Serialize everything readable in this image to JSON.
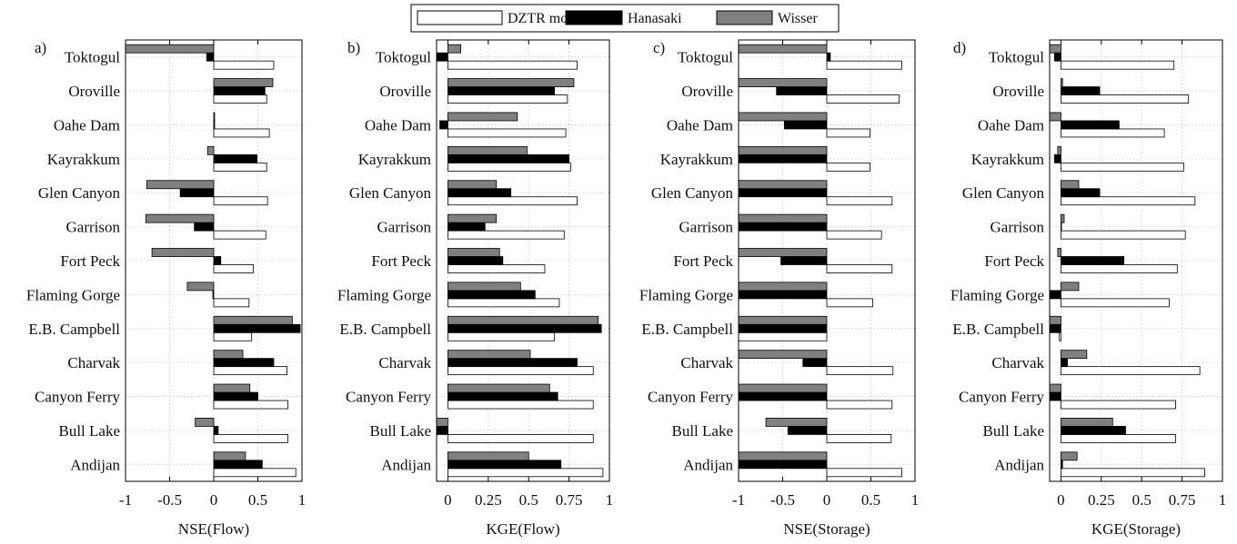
{
  "legend": [
    "DZTR model",
    "Hanasaki",
    "Wisser"
  ],
  "colors": {
    "DZTR model": "#ffffff",
    "Hanasaki": "#000000",
    "Wisser": "#808080"
  },
  "chart_data": [
    {
      "type": "bar",
      "orientation": "horizontal",
      "panel_label": "a)",
      "xlabel": "NSE(Flow)",
      "xlim": [
        -1,
        1
      ],
      "xticks": [
        -1,
        -0.5,
        0,
        0.5,
        1
      ],
      "xtick_labels": [
        "-1",
        "-0.5",
        "0",
        "0.5",
        "1"
      ],
      "grid": true,
      "categories": [
        "Toktogul",
        "Oroville",
        "Oahe Dam",
        "Kayrakkum",
        "Glen Canyon",
        "Garrison",
        "Fort Peck",
        "Flaming Gorge",
        "E.B. Campbell",
        "Charvak",
        "Canyon Ferry",
        "Bull Lake",
        "Andijan"
      ],
      "series": [
        {
          "name": "DZTR model",
          "values": [
            0.68,
            0.6,
            0.63,
            0.6,
            0.61,
            0.59,
            0.45,
            0.4,
            0.43,
            0.83,
            0.84,
            0.84,
            0.93
          ]
        },
        {
          "name": "Hanasaki",
          "values": [
            -0.08,
            0.58,
            0.01,
            0.49,
            -0.38,
            -0.22,
            0.08,
            -0.01,
            0.98,
            0.68,
            0.5,
            0.05,
            0.55
          ]
        },
        {
          "name": "Wisser",
          "values": [
            -1.0,
            0.67,
            0.01,
            -0.07,
            -0.76,
            -0.77,
            -0.7,
            -0.3,
            0.89,
            0.33,
            0.41,
            -0.21,
            0.36
          ]
        }
      ]
    },
    {
      "type": "bar",
      "orientation": "horizontal",
      "panel_label": "b)",
      "xlabel": "KGE(Flow)",
      "xlim": [
        -0.07,
        1
      ],
      "xticks": [
        0,
        0.25,
        0.5,
        0.75,
        1
      ],
      "xtick_labels": [
        "0",
        "0.25",
        "0.5",
        "0.75",
        "1"
      ],
      "grid": true,
      "categories": [
        "Toktogul",
        "Oroville",
        "Oahe Dam",
        "Kayrakkum",
        "Glen Canyon",
        "Garrison",
        "Fort Peck",
        "Flaming Gorge",
        "E.B. Campbell",
        "Charvak",
        "Canyon Ferry",
        "Bull Lake",
        "Andijan"
      ],
      "series": [
        {
          "name": "DZTR model",
          "values": [
            0.8,
            0.74,
            0.73,
            0.76,
            0.8,
            0.72,
            0.6,
            0.69,
            0.66,
            0.9,
            0.9,
            0.9,
            0.96
          ]
        },
        {
          "name": "Hanasaki",
          "values": [
            -0.07,
            0.66,
            -0.05,
            0.75,
            0.39,
            0.23,
            0.34,
            0.54,
            0.95,
            0.8,
            0.68,
            -0.07,
            0.7
          ]
        },
        {
          "name": "Wisser",
          "values": [
            0.08,
            0.78,
            0.43,
            0.49,
            0.3,
            0.3,
            0.32,
            0.45,
            0.93,
            0.51,
            0.63,
            -0.07,
            0.5
          ]
        }
      ]
    },
    {
      "type": "bar",
      "orientation": "horizontal",
      "panel_label": "c)",
      "xlabel": "NSE(Storage)",
      "xlim": [
        -1,
        1
      ],
      "xticks": [
        -1,
        -0.5,
        0,
        0.5,
        1
      ],
      "xtick_labels": [
        "-1",
        "-0.5",
        "0",
        "0.5",
        "1"
      ],
      "grid": true,
      "categories": [
        "Toktogul",
        "Oroville",
        "Oahe Dam",
        "Kayrakkum",
        "Glen Canyon",
        "Garrison",
        "Fort Peck",
        "Flaming Gorge",
        "E.B. Campbell",
        "Charvak",
        "Canyon Ferry",
        "Bull Lake",
        "Andijan"
      ],
      "series": [
        {
          "name": "DZTR model",
          "values": [
            0.85,
            0.82,
            0.49,
            0.49,
            0.74,
            0.62,
            0.74,
            0.52,
            -1.0,
            0.75,
            0.74,
            0.73,
            0.85
          ]
        },
        {
          "name": "Hanasaki",
          "values": [
            0.04,
            -0.57,
            -0.48,
            -1.0,
            -1.0,
            -1.0,
            -0.52,
            -1.0,
            -1.0,
            -0.27,
            -1.0,
            -0.44,
            -1.0
          ]
        },
        {
          "name": "Wisser",
          "values": [
            -1.0,
            -1.0,
            -1.0,
            -1.0,
            -1.0,
            -1.0,
            -1.0,
            -1.0,
            -1.0,
            -1.0,
            -1.0,
            -0.69,
            -1.0
          ]
        }
      ]
    },
    {
      "type": "bar",
      "orientation": "horizontal",
      "panel_label": "d)",
      "xlabel": "KGE(Storage)",
      "xlim": [
        -0.07,
        1
      ],
      "xticks": [
        0,
        0.25,
        0.5,
        0.75,
        1
      ],
      "xtick_labels": [
        "0",
        "0.25",
        "0.5",
        "0.75",
        "1"
      ],
      "grid": true,
      "categories": [
        "Toktogul",
        "Oroville",
        "Oahe Dam",
        "Kayrakkum",
        "Glen Canyon",
        "Garrison",
        "Fort Peck",
        "Flaming Gorge",
        "E.B. Campbell",
        "Charvak",
        "Canyon Ferry",
        "Bull Lake",
        "Andijan"
      ],
      "series": [
        {
          "name": "DZTR model",
          "values": [
            0.7,
            0.79,
            0.64,
            0.76,
            0.83,
            0.77,
            0.72,
            0.67,
            -0.01,
            0.86,
            0.71,
            0.71,
            0.89
          ]
        },
        {
          "name": "Hanasaki",
          "values": [
            -0.04,
            0.24,
            0.36,
            -0.04,
            0.24,
            0.0,
            0.39,
            -0.07,
            -0.07,
            0.04,
            -0.07,
            0.4,
            0.01
          ]
        },
        {
          "name": "Wisser",
          "values": [
            -0.07,
            0.01,
            -0.07,
            -0.02,
            0.11,
            0.02,
            -0.02,
            0.11,
            -0.07,
            0.16,
            -0.07,
            0.32,
            0.1
          ]
        }
      ]
    }
  ]
}
